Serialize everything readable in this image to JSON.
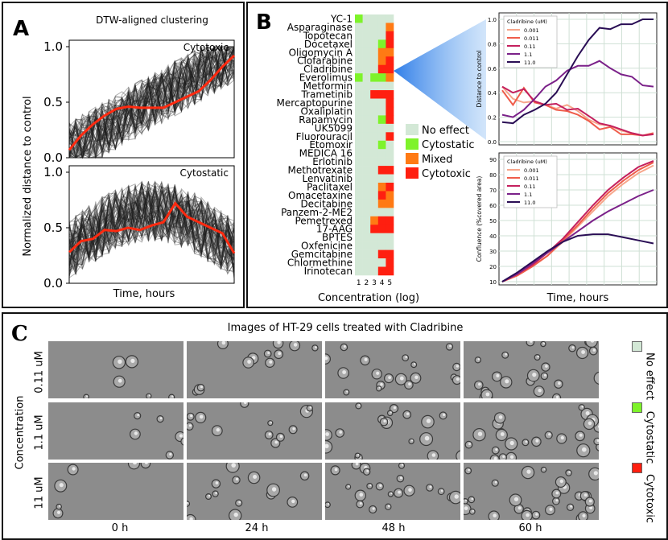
{
  "panelA": {
    "letter": "A",
    "title": "DTW-aligned clustering",
    "ylabel": "Normalized distance to control",
    "xlabel": "Time, hours",
    "top_label": "Cytotoxic",
    "bottom_label": "Cytostatic",
    "yticks": [
      "0.0",
      "0.5",
      "1.0"
    ]
  },
  "panelB": {
    "letter": "B",
    "drugs": [
      "YC-1",
      "Asparaginase",
      "Topotecan",
      "Docetaxel",
      "Oligomycin A",
      "Clofarabine",
      "Cladribine",
      "Everolimus",
      "Metformin",
      "Trametinib",
      "Mercaptopurine",
      "Oxaliplatin",
      "Rapamycin",
      "UK5099",
      "Fluorouracil",
      "Etomoxir",
      "MEDICA 16",
      "Erlotinib",
      "Methotrexate",
      "Lenvatinib",
      "Paclitaxel",
      "Omacetaxine",
      "Decitabine",
      "Panzem-2-ME2",
      "Pemetrexed",
      "17-AAG",
      "BPTES",
      "Oxfenicine",
      "Gemcitabine",
      "Chlormethine",
      "Irinotecan"
    ],
    "conc_ticks": [
      "1",
      "2",
      "3",
      "4",
      "5"
    ],
    "xlabel": "Concentration (log)",
    "legend": [
      "No effect",
      "Cytostatic",
      "Mixed",
      "Cytotoxic"
    ],
    "colors": {
      "no_effect": "#d3e8d6",
      "cytostatic": "#7ef32a",
      "mixed": "#ff7a14",
      "cytotoxic": "#ff1f10"
    },
    "grid": [
      "SNNNN",
      "NNNNM",
      "NNNNC",
      "NNNSC",
      "NNNMM",
      "NNNMC",
      "NNNCC",
      "SNSSM",
      "NNNNN",
      "NNCCC",
      "NNNNC",
      "NNNNC",
      "NNNSC",
      "NNNNN",
      "NNNNC",
      "NNNSN",
      "NNNNN",
      "NNNNN",
      "NNNCC",
      "NNNNN",
      "NNNMC",
      "NNNCM",
      "NNNMM",
      "NNNNN",
      "NNMCC",
      "NNCCC",
      "NNNNN",
      "NNNNN",
      "NNNCC",
      "NNNNC",
      "NNNCC"
    ],
    "chart_top": {
      "type": "line",
      "ylabel": "Distance to control",
      "legend_title": "Cladribine (uM)",
      "series_names": [
        "0.001",
        "0.011",
        "0.11",
        "1.1",
        "11.0"
      ],
      "series_colors": [
        "#f7a68b",
        "#ef5d4b",
        "#c4205e",
        "#7b2189",
        "#2a0e55"
      ],
      "yticks": [
        "0.0",
        "0.2",
        "0.4",
        "0.6",
        "0.8",
        "1.0"
      ],
      "ylim": [
        0,
        1.0
      ],
      "values": [
        [
          0.45,
          0.35,
          0.32,
          0.33,
          0.3,
          0.27,
          0.3,
          0.25,
          0.18,
          0.14,
          0.13,
          0.09,
          0.07,
          0.05,
          0.06
        ],
        [
          0.42,
          0.3,
          0.44,
          0.32,
          0.3,
          0.26,
          0.25,
          0.22,
          0.17,
          0.1,
          0.12,
          0.06,
          0.06,
          0.05,
          0.07
        ],
        [
          0.45,
          0.4,
          0.43,
          0.33,
          0.3,
          0.31,
          0.26,
          0.27,
          0.21,
          0.15,
          0.13,
          0.1,
          0.07,
          0.05,
          0.06
        ],
        [
          0.22,
          0.2,
          0.26,
          0.35,
          0.45,
          0.5,
          0.58,
          0.62,
          0.62,
          0.66,
          0.6,
          0.55,
          0.53,
          0.46,
          0.45
        ],
        [
          0.16,
          0.15,
          0.22,
          0.26,
          0.31,
          0.4,
          0.55,
          0.7,
          0.83,
          0.93,
          0.92,
          0.96,
          0.96,
          1.0,
          1.0
        ]
      ]
    },
    "chart_bottom": {
      "type": "line",
      "ylabel": "Confluence (%covered area)",
      "legend_title": "Cladribine (uM)",
      "series_names": [
        "0.001",
        "0.011",
        "0.11",
        "1.1",
        "11.0"
      ],
      "yticks": [
        "10",
        "20",
        "30",
        "40",
        "50",
        "60",
        "70",
        "80",
        "90"
      ],
      "ylim": [
        10,
        90
      ],
      "xlabel": "Time, hours",
      "values": [
        [
          10,
          14,
          20,
          27,
          36,
          46,
          56,
          66,
          74,
          81,
          86
        ],
        [
          10,
          14,
          20,
          27,
          37,
          47,
          58,
          68,
          76,
          83,
          88
        ],
        [
          10,
          15,
          21,
          29,
          38,
          49,
          60,
          70,
          78,
          85,
          89
        ],
        [
          10,
          15,
          22,
          29,
          36,
          43,
          50,
          56,
          61,
          66,
          70
        ],
        [
          10,
          16,
          23,
          30,
          36,
          40,
          41,
          41,
          39,
          37,
          35
        ]
      ]
    }
  },
  "panelC": {
    "letter": "C",
    "title": "Images of HT-29 cells treated with Cladribine",
    "row_labels": [
      "0.11 uM",
      "1.1 uM",
      "11 uM"
    ],
    "col_labels": [
      "0 h",
      "24 h",
      "48 h",
      "60 h"
    ],
    "right_labels": [
      "No effect",
      "Cytostatic",
      "Cytotoxic"
    ],
    "left_axis": "Concentration"
  }
}
